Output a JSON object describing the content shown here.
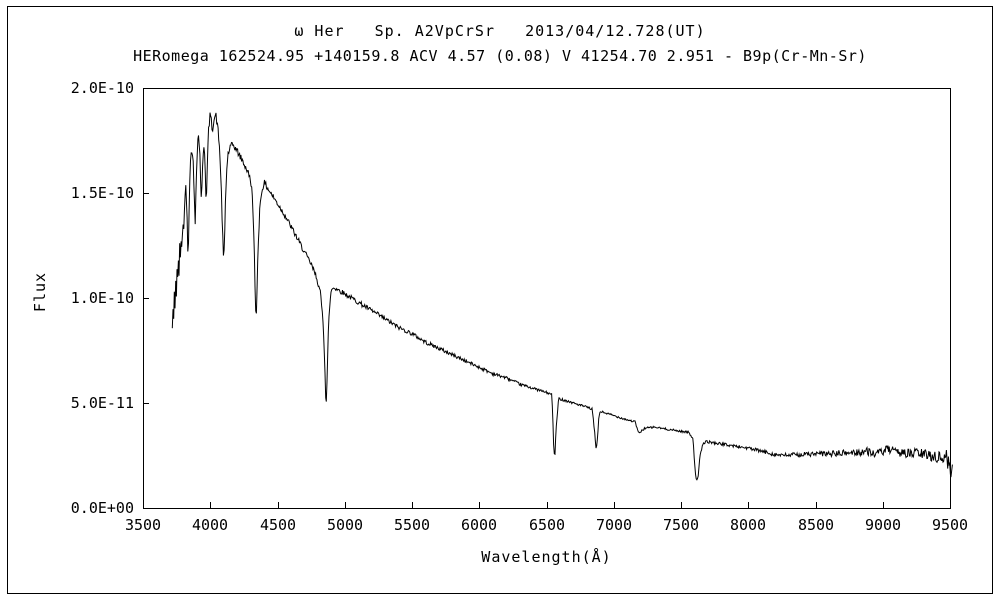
{
  "chart_data": {
    "type": "line",
    "title_line1": "ω Her   Sp. A2VpCrSr   2013/04/12.728(UT)",
    "title_line2": "HERomega 162524.95 +140159.8 ACV 4.57 (0.08) V 41254.70 2.951 - B9p(Cr-Mn-Sr)",
    "xlabel": "Wavelength(Å)",
    "ylabel": "Flux",
    "xlim": [
      3500,
      9500
    ],
    "ylim_scaled": [
      0,
      2.0
    ],
    "flux_scale": "1e-10",
    "x_ticks": [
      3500,
      4000,
      4500,
      5000,
      5500,
      6000,
      6500,
      7000,
      7500,
      8000,
      8500,
      9000,
      9500
    ],
    "x_tick_labels": [
      "3500",
      "4000",
      "4500",
      "5000",
      "5500",
      "6000",
      "6500",
      "7000",
      "7500",
      "8000",
      "8500",
      "9000",
      "9500"
    ],
    "y_ticks": [
      0,
      0.5,
      1.0,
      1.5,
      2.0
    ],
    "y_tick_labels": [
      "0.0E+00",
      "5.0E-11",
      "1.0E-10",
      "1.5E-10",
      "2.0E-10"
    ],
    "grid": false,
    "legend": false,
    "line_color": "#000000",
    "background_color": "#ffffff",
    "series": [
      {
        "name": "spectrum",
        "points": [
          [
            3718,
            0.85
          ],
          [
            3723,
            0.95
          ],
          [
            3728,
            0.88
          ],
          [
            3733,
            1.02
          ],
          [
            3738,
            0.97
          ],
          [
            3743,
            1.08
          ],
          [
            3748,
            1.02
          ],
          [
            3753,
            1.13
          ],
          [
            3758,
            1.08
          ],
          [
            3763,
            1.18
          ],
          [
            3768,
            1.12
          ],
          [
            3773,
            1.24
          ],
          [
            3778,
            1.18
          ],
          [
            3784,
            1.3
          ],
          [
            3790,
            1.24
          ],
          [
            3796,
            1.36
          ],
          [
            3802,
            1.3
          ],
          [
            3808,
            1.44
          ],
          [
            3814,
            1.5
          ],
          [
            3820,
            1.53
          ],
          [
            3826,
            1.44
          ],
          [
            3832,
            1.26
          ],
          [
            3836,
            1.2
          ],
          [
            3841,
            1.38
          ],
          [
            3847,
            1.56
          ],
          [
            3853,
            1.64
          ],
          [
            3859,
            1.7
          ],
          [
            3865,
            1.72
          ],
          [
            3871,
            1.67
          ],
          [
            3877,
            1.57
          ],
          [
            3883,
            1.44
          ],
          [
            3888,
            1.36
          ],
          [
            3893,
            1.5
          ],
          [
            3899,
            1.64
          ],
          [
            3905,
            1.73
          ],
          [
            3911,
            1.78
          ],
          [
            3917,
            1.75
          ],
          [
            3923,
            1.68
          ],
          [
            3929,
            1.55
          ],
          [
            3935,
            1.46
          ],
          [
            3941,
            1.58
          ],
          [
            3947,
            1.68
          ],
          [
            3953,
            1.73
          ],
          [
            3959,
            1.69
          ],
          [
            3965,
            1.56
          ],
          [
            3971,
            1.44
          ],
          [
            3977,
            1.6
          ],
          [
            3983,
            1.73
          ],
          [
            3989,
            1.81
          ],
          [
            3995,
            1.85
          ],
          [
            4001,
            1.88
          ],
          [
            4008,
            1.84
          ],
          [
            4016,
            1.8
          ],
          [
            4024,
            1.84
          ],
          [
            4032,
            1.86
          ],
          [
            4042,
            1.87
          ],
          [
            4052,
            1.83
          ],
          [
            4062,
            1.77
          ],
          [
            4072,
            1.68
          ],
          [
            4082,
            1.52
          ],
          [
            4090,
            1.34
          ],
          [
            4096,
            1.22
          ],
          [
            4101,
            1.17
          ],
          [
            4107,
            1.3
          ],
          [
            4114,
            1.48
          ],
          [
            4122,
            1.6
          ],
          [
            4130,
            1.68
          ],
          [
            4150,
            1.72
          ],
          [
            4170,
            1.73
          ],
          [
            4200,
            1.7
          ],
          [
            4250,
            1.64
          ],
          [
            4280,
            1.6
          ],
          [
            4300,
            1.56
          ],
          [
            4315,
            1.48
          ],
          [
            4328,
            1.2
          ],
          [
            4336,
            0.95
          ],
          [
            4341,
            0.89
          ],
          [
            4348,
            1.05
          ],
          [
            4356,
            1.25
          ],
          [
            4368,
            1.42
          ],
          [
            4380,
            1.5
          ],
          [
            4400,
            1.55
          ],
          [
            4450,
            1.5
          ],
          [
            4500,
            1.45
          ],
          [
            4550,
            1.4
          ],
          [
            4600,
            1.34
          ],
          [
            4650,
            1.28
          ],
          [
            4700,
            1.22
          ],
          [
            4750,
            1.16
          ],
          [
            4790,
            1.1
          ],
          [
            4820,
            1.02
          ],
          [
            4840,
            0.88
          ],
          [
            4852,
            0.68
          ],
          [
            4858,
            0.53
          ],
          [
            4862,
            0.49
          ],
          [
            4868,
            0.6
          ],
          [
            4876,
            0.8
          ],
          [
            4886,
            0.95
          ],
          [
            4900,
            1.04
          ],
          [
            4920,
            1.05
          ],
          [
            4950,
            1.04
          ],
          [
            5000,
            1.02
          ],
          [
            5100,
            0.98
          ],
          [
            5200,
            0.94
          ],
          [
            5300,
            0.9
          ],
          [
            5400,
            0.86
          ],
          [
            5500,
            0.83
          ],
          [
            5600,
            0.79
          ],
          [
            5700,
            0.76
          ],
          [
            5800,
            0.73
          ],
          [
            5900,
            0.7
          ],
          [
            6000,
            0.67
          ],
          [
            6100,
            0.64
          ],
          [
            6200,
            0.62
          ],
          [
            6300,
            0.59
          ],
          [
            6400,
            0.57
          ],
          [
            6500,
            0.55
          ],
          [
            6540,
            0.54
          ],
          [
            6548,
            0.4
          ],
          [
            6556,
            0.25
          ],
          [
            6563,
            0.26
          ],
          [
            6572,
            0.38
          ],
          [
            6590,
            0.52
          ],
          [
            6600,
            0.52
          ],
          [
            6700,
            0.5
          ],
          [
            6800,
            0.48
          ],
          [
            6840,
            0.47
          ],
          [
            6858,
            0.36
          ],
          [
            6868,
            0.28
          ],
          [
            6878,
            0.32
          ],
          [
            6890,
            0.44
          ],
          [
            6900,
            0.46
          ],
          [
            7000,
            0.44
          ],
          [
            7100,
            0.42
          ],
          [
            7160,
            0.41
          ],
          [
            7185,
            0.355
          ],
          [
            7230,
            0.38
          ],
          [
            7300,
            0.385
          ],
          [
            7350,
            0.38
          ],
          [
            7400,
            0.375
          ],
          [
            7500,
            0.365
          ],
          [
            7560,
            0.36
          ],
          [
            7590,
            0.33
          ],
          [
            7605,
            0.17
          ],
          [
            7615,
            0.135
          ],
          [
            7628,
            0.15
          ],
          [
            7640,
            0.24
          ],
          [
            7660,
            0.3
          ],
          [
            7680,
            0.315
          ],
          [
            7700,
            0.315
          ],
          [
            7800,
            0.305
          ],
          [
            7900,
            0.295
          ],
          [
            8000,
            0.285
          ],
          [
            8100,
            0.27
          ],
          [
            8200,
            0.255
          ],
          [
            8250,
            0.25
          ],
          [
            8300,
            0.252
          ],
          [
            8400,
            0.255
          ],
          [
            8500,
            0.257
          ],
          [
            8600,
            0.258
          ],
          [
            8700,
            0.26
          ],
          [
            8800,
            0.265
          ],
          [
            8900,
            0.27
          ],
          [
            8950,
            0.255
          ],
          [
            9000,
            0.27
          ],
          [
            9050,
            0.28
          ],
          [
            9100,
            0.26
          ],
          [
            9150,
            0.27
          ],
          [
            9200,
            0.255
          ],
          [
            9250,
            0.265
          ],
          [
            9300,
            0.255
          ],
          [
            9350,
            0.25
          ],
          [
            9400,
            0.245
          ],
          [
            9440,
            0.235
          ],
          [
            9470,
            0.245
          ],
          [
            9490,
            0.21
          ],
          [
            9505,
            0.19
          ],
          [
            9520,
            0.16
          ]
        ]
      }
    ],
    "noise_profile": [
      [
        3718,
        0.03
      ],
      [
        3900,
        0.022
      ],
      [
        4200,
        0.016
      ],
      [
        4600,
        0.014
      ],
      [
        5000,
        0.012
      ],
      [
        5500,
        0.01
      ],
      [
        6000,
        0.008
      ],
      [
        6500,
        0.006
      ],
      [
        7000,
        0.005
      ],
      [
        7500,
        0.005
      ],
      [
        8000,
        0.008
      ],
      [
        8500,
        0.012
      ],
      [
        8800,
        0.018
      ],
      [
        9100,
        0.022
      ],
      [
        9400,
        0.028
      ],
      [
        9520,
        0.045
      ]
    ]
  }
}
